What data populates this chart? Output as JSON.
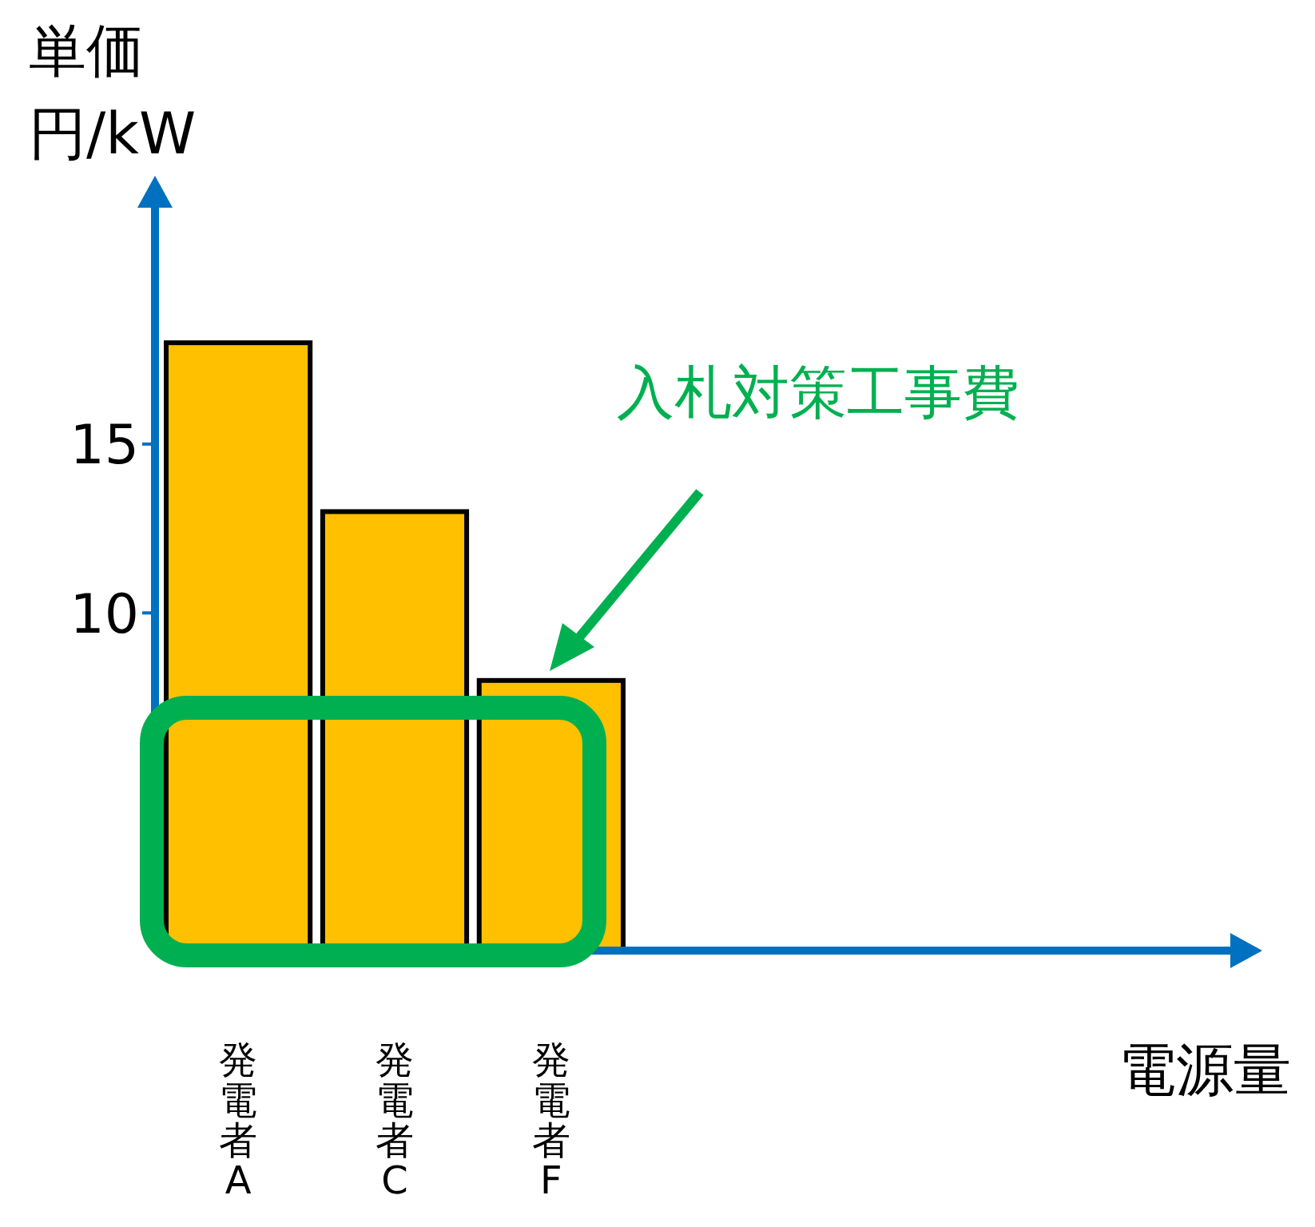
{
  "chart_data": {
    "type": "bar",
    "ylabel": "単価",
    "categories": [
      "発電者A",
      "発電者C",
      "発電者F"
    ],
    "values": [
      18,
      13,
      8
    ],
    "color": "#ffc000",
    "ylim": [
      0,
      22
    ],
    "yticks": [
      10,
      15
    ],
    "annotations": [
      "入札対策工事費",
      "円/kW",
      "電源量"
    ]
  }
}
